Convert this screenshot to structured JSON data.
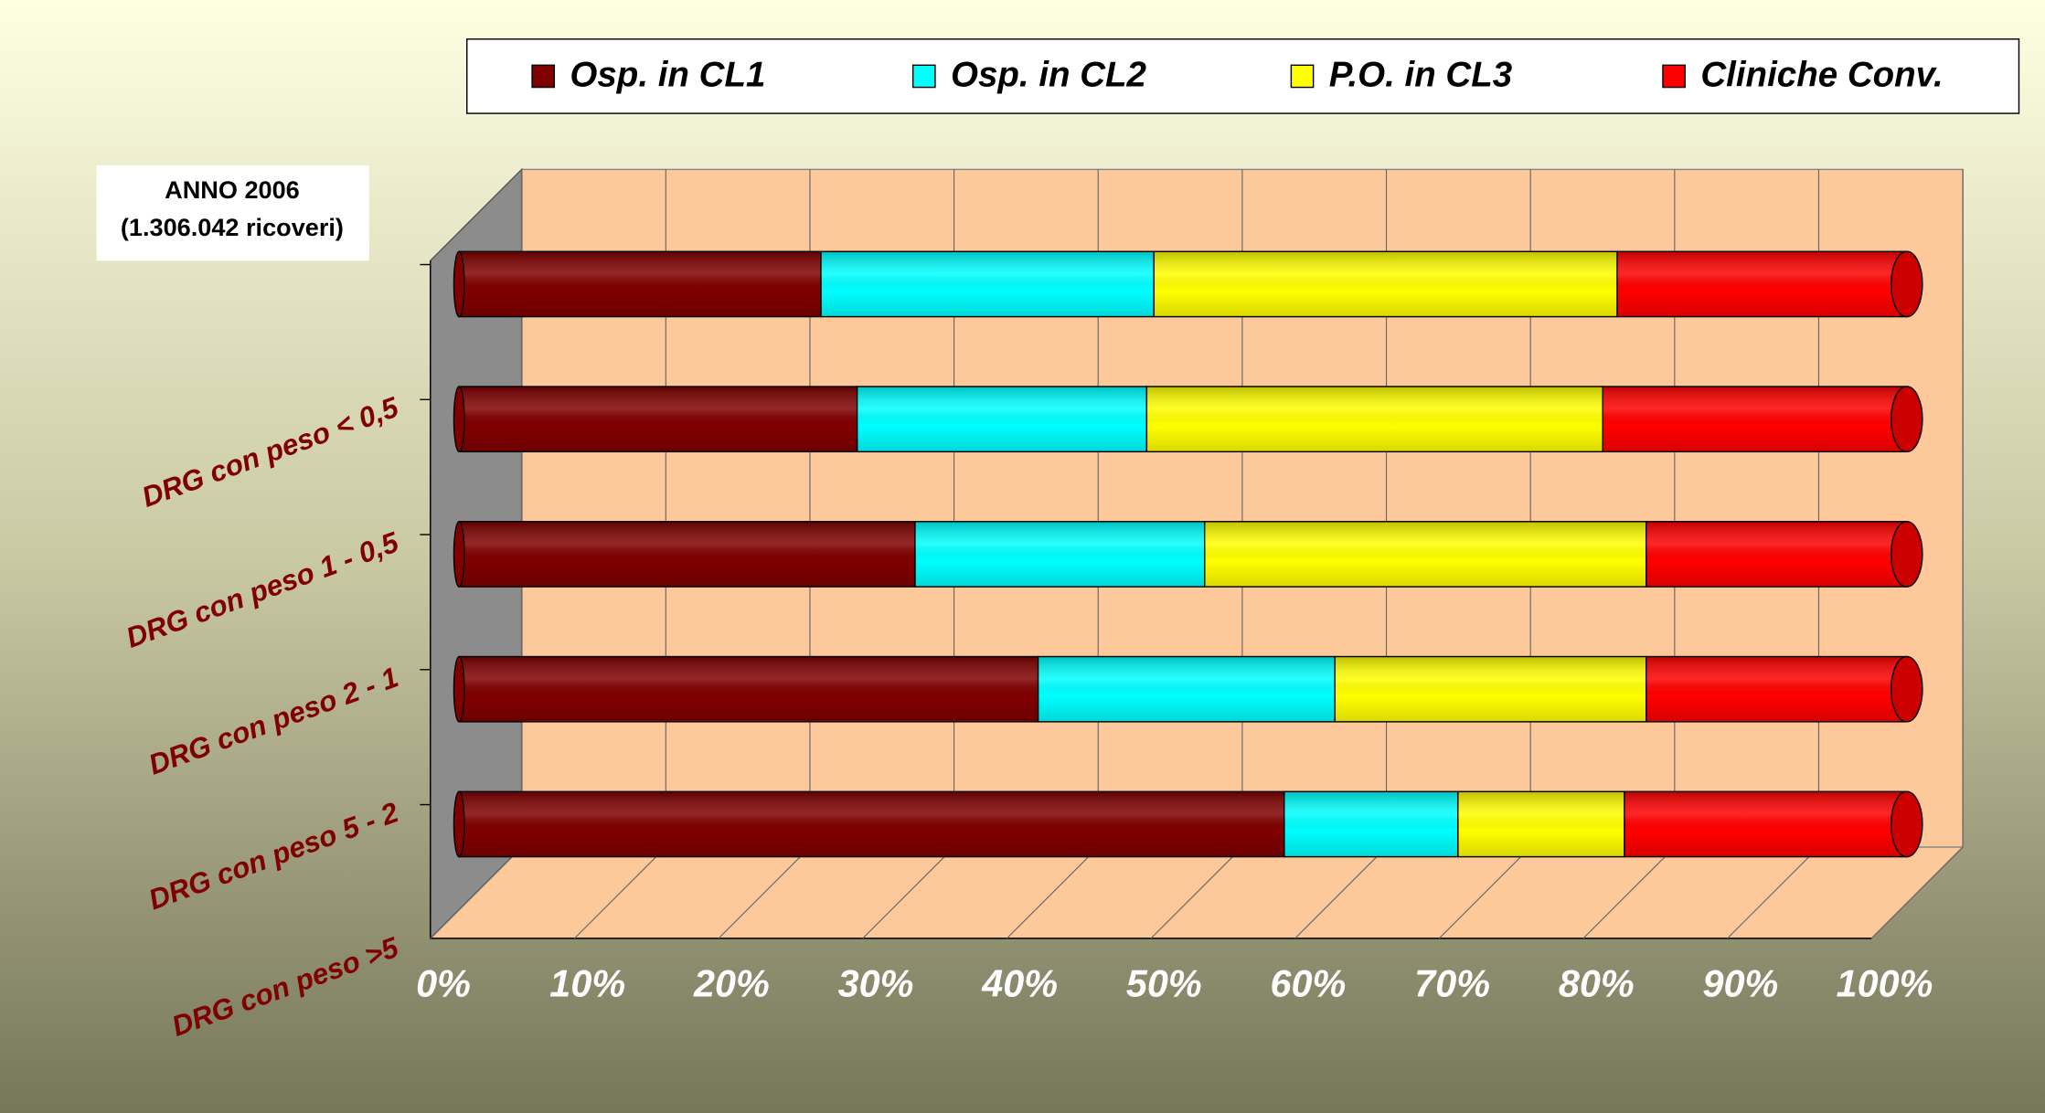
{
  "chart_data": {
    "type": "bar",
    "orientation": "horizontal",
    "stacked": true,
    "annotations": [
      "ANNO 2006",
      "(1.306.042 ricoveri)"
    ],
    "categories": [
      "DRG con peso < 0,5",
      "DRG con peso 1 - 0,5",
      "DRG con peso 2 - 1",
      "DRG con peso 5 - 2",
      "DRG con peso >5"
    ],
    "series": [
      {
        "name": "Osp. in CL1",
        "color": "#800000",
        "values": [
          25,
          27.5,
          31.5,
          40,
          57
        ]
      },
      {
        "name": "Osp. in CL2",
        "color": "#00ffff",
        "values": [
          23,
          20,
          20,
          20.5,
          12
        ]
      },
      {
        "name": "P.O. in CL3",
        "color": "#ffff00",
        "values": [
          32,
          31.5,
          30.5,
          21.5,
          11.5
        ]
      },
      {
        "name": "Cliniche Conv.",
        "color": "#ff0000",
        "values": [
          20,
          21,
          18,
          18,
          19.5
        ]
      }
    ],
    "xlim": [
      0,
      100
    ],
    "xticks": [
      {
        "value": 0,
        "label": "0%"
      },
      {
        "value": 10,
        "label": "10%"
      },
      {
        "value": 20,
        "label": "20%"
      },
      {
        "value": 30,
        "label": "30%"
      },
      {
        "value": 40,
        "label": "40%"
      },
      {
        "value": 50,
        "label": "50%"
      },
      {
        "value": 60,
        "label": "60%"
      },
      {
        "value": 70,
        "label": "70%"
      },
      {
        "value": 80,
        "label": "80%"
      },
      {
        "value": 90,
        "label": "90%"
      },
      {
        "value": 100,
        "label": "100%"
      }
    ],
    "grid": true
  }
}
